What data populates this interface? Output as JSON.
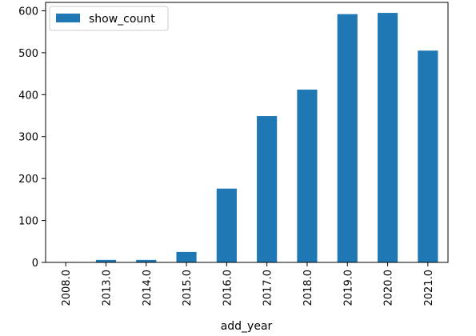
{
  "chart_data": {
    "type": "bar",
    "categories": [
      "2008.0",
      "2013.0",
      "2014.0",
      "2015.0",
      "2016.0",
      "2017.0",
      "2018.0",
      "2019.0",
      "2020.0",
      "2021.0"
    ],
    "series": [
      {
        "name": "show_count",
        "values": [
          1,
          6,
          6,
          25,
          176,
          349,
          412,
          592,
          595,
          505
        ],
        "color": "#1f77b4"
      }
    ],
    "xlabel": "add_year",
    "ylabel": "",
    "ylim": [
      0,
      620
    ],
    "yticks": [
      0,
      100,
      200,
      300,
      400,
      500,
      600
    ],
    "legend_position": "top-left",
    "grid": false
  }
}
